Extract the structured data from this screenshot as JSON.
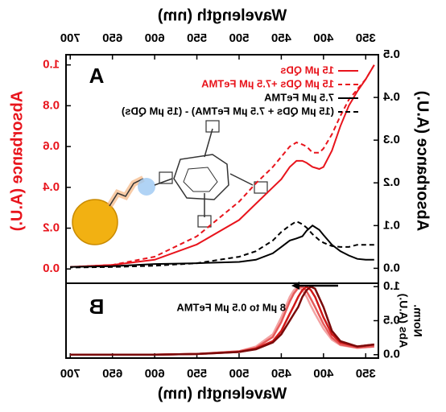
{
  "chart_data": [
    {
      "type": "line",
      "panel_label": "A",
      "xlabel": "Wavelength (nm)",
      "xlim": [
        335,
        705
      ],
      "xticks": [
        350,
        400,
        450,
        500,
        550,
        600,
        650,
        700
      ],
      "ylabel": "Absorbance (A.U.)",
      "ylabel_color": "#e8141c",
      "ylim": [
        -0.07,
        1.05
      ],
      "yticks": [
        {
          "value": 0,
          "label": "0.0"
        },
        0.2,
        0.4,
        0.6,
        0.8,
        {
          "value": 1,
          "label": "1.0"
        }
      ],
      "y2label": "Absorbance (A.U.)",
      "y2lim": [
        -0.035,
        0.5
      ],
      "y2ticks": [
        {
          "value": 0,
          "label": "0.0"
        },
        0.1,
        0.2,
        0.3,
        0.4,
        0.5
      ],
      "x": [
        340,
        350,
        360,
        370,
        380,
        390,
        400,
        405,
        413,
        420,
        425,
        432,
        440,
        450,
        460,
        480,
        500,
        550,
        600,
        650,
        700
      ],
      "series": [
        {
          "name": "15 µM QDs",
          "color": "#e8141c",
          "dashed": false,
          "values": [
            1.0,
            0.93,
            0.87,
            0.8,
            0.7,
            0.58,
            0.5,
            0.49,
            0.5,
            0.52,
            0.53,
            0.53,
            0.5,
            0.44,
            0.4,
            0.32,
            0.24,
            0.12,
            0.045,
            0.02,
            0.01
          ]
        },
        {
          "name": "15 µM QDs +7.5 µM FeTMA",
          "color": "#e8141c",
          "dashed": true,
          "values": [
            1.0,
            0.93,
            0.88,
            0.83,
            0.75,
            0.66,
            0.59,
            0.57,
            0.57,
            0.6,
            0.61,
            0.62,
            0.6,
            0.55,
            0.5,
            0.42,
            0.33,
            0.16,
            0.06,
            0.02,
            0.01
          ]
        },
        {
          "name": "7.5 µM FeTMA",
          "color": "#000000",
          "dashed": false,
          "axis": "y2",
          "values": [
            0.02,
            0.02,
            0.022,
            0.03,
            0.04,
            0.055,
            0.078,
            0.09,
            0.1,
            0.088,
            0.075,
            0.07,
            0.065,
            0.05,
            0.035,
            0.02,
            0.015,
            0.012,
            0.01,
            0.005,
            0.003
          ]
        },
        {
          "name": "(15 µM QDs + 7.5 µM FeTMA) - (15 µM QDs)",
          "color": "#000000",
          "dashed": true,
          "axis": "y2",
          "values": [
            0.055,
            0.055,
            0.055,
            0.05,
            0.05,
            0.052,
            0.06,
            0.066,
            0.08,
            0.095,
            0.103,
            0.11,
            0.1,
            0.085,
            0.065,
            0.04,
            0.027,
            0.012,
            0.006,
            0.003,
            0.002
          ]
        }
      ]
    },
    {
      "type": "line",
      "panel_label": "B",
      "xlabel": "Wavelength (nm)",
      "annotation": "8 µM to 0.5 µM FeTMA",
      "xlim": [
        335,
        705
      ],
      "xticks": [
        350,
        400,
        450,
        500,
        550,
        600,
        650,
        700
      ],
      "ylabel": [
        "Norm.",
        "Abs (A.U.)"
      ],
      "ylim": [
        -0.05,
        1.05
      ],
      "yticks": [
        {
          "value": 0,
          "label": "0.0"
        },
        0.5,
        {
          "value": 1,
          "label": "1.0"
        }
      ],
      "x": [
        340,
        360,
        380,
        390,
        400,
        410,
        415,
        420,
        425,
        430,
        435,
        440,
        450,
        460,
        480,
        500,
        550,
        600,
        650,
        700
      ],
      "series": [
        {
          "color": "#f3a3a3",
          "values": [
            0.12,
            0.1,
            0.14,
            0.22,
            0.38,
            0.6,
            0.72,
            0.85,
            0.95,
            1.0,
            0.95,
            0.85,
            0.55,
            0.3,
            0.12,
            0.05,
            0.01,
            0,
            0,
            0
          ]
        },
        {
          "color": "#e65a5a",
          "values": [
            0.12,
            0.1,
            0.15,
            0.25,
            0.45,
            0.7,
            0.82,
            0.93,
            1.0,
            0.98,
            0.9,
            0.78,
            0.48,
            0.26,
            0.1,
            0.05,
            0.01,
            0,
            0,
            0
          ]
        },
        {
          "color": "#d01818",
          "values": [
            0.15,
            0.12,
            0.18,
            0.3,
            0.55,
            0.85,
            0.95,
            1.0,
            0.95,
            0.85,
            0.72,
            0.6,
            0.35,
            0.2,
            0.09,
            0.04,
            0.01,
            0,
            0,
            0
          ]
        },
        {
          "color": "#7a0a0a",
          "values": [
            0.15,
            0.12,
            0.2,
            0.35,
            0.7,
            0.97,
            1.0,
            0.95,
            0.85,
            0.7,
            0.6,
            0.5,
            0.3,
            0.18,
            0.08,
            0.04,
            0.01,
            0,
            0,
            0
          ]
        }
      ]
    }
  ]
}
